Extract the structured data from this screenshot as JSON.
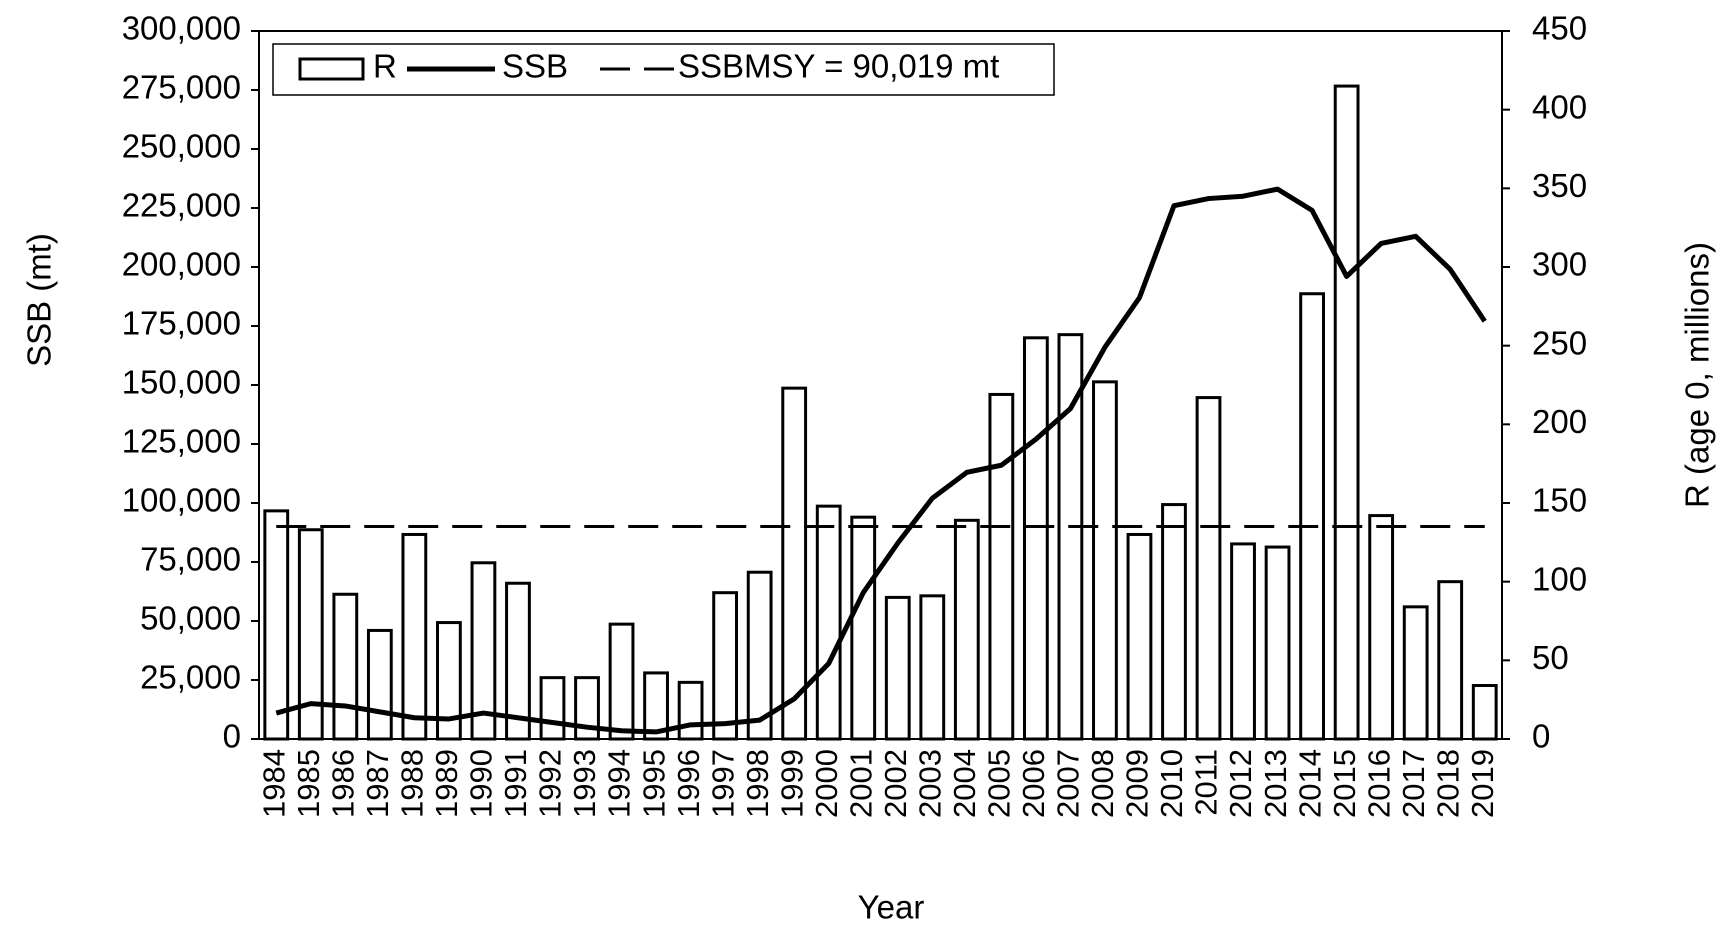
{
  "chart_data": {
    "type": "bar",
    "xlabel": "Year",
    "ylabel": "SSB (mt)",
    "y2label": "R (age 0, millions)",
    "categories": [
      "1984",
      "1985",
      "1986",
      "1987",
      "1988",
      "1989",
      "1990",
      "1991",
      "1992",
      "1993",
      "1994",
      "1995",
      "1996",
      "1997",
      "1998",
      "1999",
      "2000",
      "2001",
      "2002",
      "2003",
      "2004",
      "2005",
      "2006",
      "2007",
      "2008",
      "2009",
      "2010",
      "2011",
      "2012",
      "2013",
      "2014",
      "2015",
      "2016",
      "2017",
      "2018",
      "2019"
    ],
    "series": [
      {
        "name": "R",
        "type": "bar",
        "axis": "y2",
        "color": "#ffffff",
        "values": [
          145,
          133,
          92,
          69,
          130,
          74,
          112,
          99,
          39,
          39,
          73,
          42,
          36,
          93,
          106,
          223,
          148,
          141,
          90,
          91,
          139,
          219,
          255,
          257,
          227,
          130,
          149,
          217,
          124,
          122,
          283,
          415,
          142,
          84,
          100,
          34
        ]
      },
      {
        "name": "SSB",
        "type": "line",
        "color": "#000000",
        "values": [
          11000,
          15000,
          14000,
          11500,
          9000,
          8500,
          11000,
          9000,
          7000,
          5000,
          3500,
          3000,
          6000,
          6500,
          8000,
          17000,
          32000,
          62000,
          83000,
          102000,
          113000,
          116000,
          127000,
          140000,
          166000,
          187000,
          226000,
          229000,
          230000,
          233000,
          224000,
          196000,
          210000,
          213000,
          199000,
          177000
        ]
      }
    ],
    "reference": {
      "label": "SSBMSY = 90,019 mt",
      "value": 90019
    },
    "ylim": [
      0,
      300000
    ],
    "yticks": [
      0,
      {
        "value": 25000,
        "label": "25,000"
      },
      {
        "value": 50000,
        "label": "50,000"
      },
      {
        "value": 75000,
        "label": "75,000"
      },
      {
        "value": 100000,
        "label": "100,000"
      },
      {
        "value": 125000,
        "label": "125,000"
      },
      {
        "value": 150000,
        "label": "150,000"
      },
      {
        "value": 175000,
        "label": "175,000"
      },
      {
        "value": 200000,
        "label": "200,000"
      },
      {
        "value": 225000,
        "label": "225,000"
      },
      {
        "value": 250000,
        "label": "250,000"
      },
      {
        "value": 275000,
        "label": "275,000"
      },
      {
        "value": 300000,
        "label": "300,000"
      }
    ],
    "y2lim": [
      0,
      450
    ],
    "y2ticks": [
      0,
      50,
      100,
      150,
      200,
      250,
      300,
      350,
      400,
      450
    ],
    "grid": false
  }
}
